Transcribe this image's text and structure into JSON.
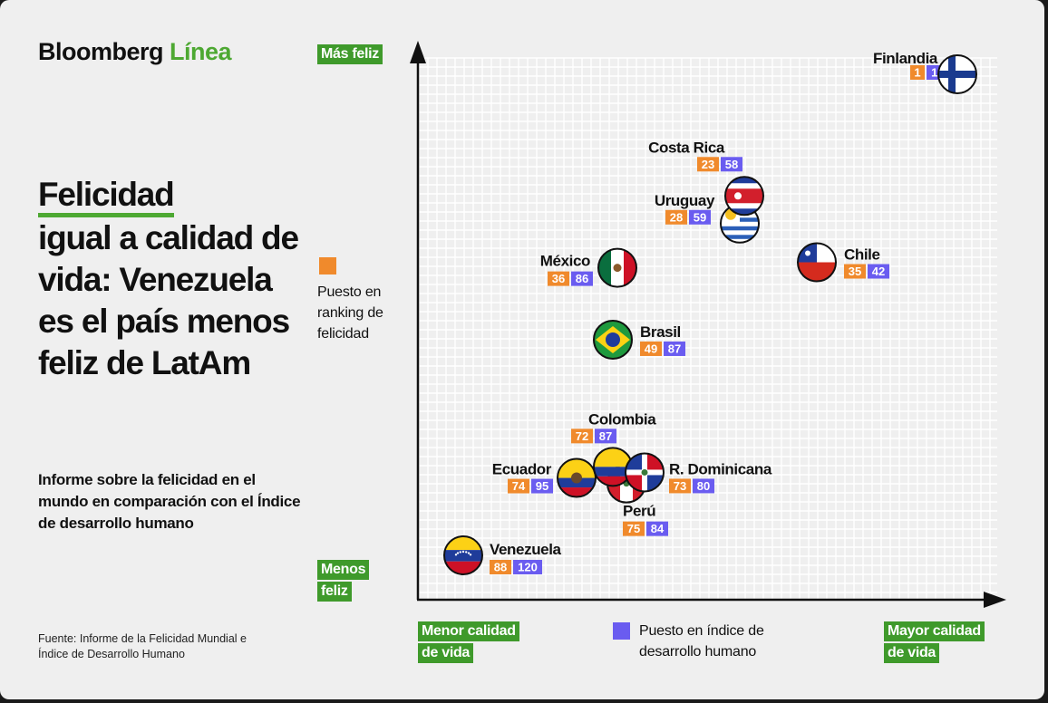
{
  "brand": {
    "name": "Bloomberg",
    "accent": "Línea"
  },
  "title": {
    "first": "Felicidad",
    "rest": "igual a calidad de vida: Venezuela es el país menos feliz de LatAm"
  },
  "subtitle": "Informe sobre la felicidad en el mundo en comparación con el Índice de desarrollo humano",
  "source": "Fuente: Informe de la Felicidad Mundial e Índice de Desarrollo Humano",
  "axis_labels": {
    "y_top": "Más feliz",
    "y_bottom_1": "Menos",
    "y_bottom_2": "feliz",
    "x_left_1": "Menor calidad",
    "x_left_2": "de vida",
    "x_right_1": "Mayor calidad",
    "x_right_2": "de vida"
  },
  "legend": {
    "happiness": {
      "line1": "Puesto en",
      "line2": "ranking de",
      "line3": "felicidad"
    },
    "hdi": {
      "line1": "Puesto en índice de",
      "line2": "desarrollo humano"
    }
  },
  "colors": {
    "happiness_rank": "#f08a2c",
    "hdi_rank": "#6a5cf0",
    "label_green": "#3f9a2b",
    "accent_green": "#4da832",
    "grid": "#ffffff",
    "background": "#efefef"
  },
  "chart_data": {
    "type": "scatter",
    "x_axis": "Puesto en índice de desarrollo humano",
    "y_axis": "Puesto en ranking de felicidad",
    "x_direction": "Menor calidad de vida → Mayor calidad de vida",
    "y_direction": "Menos feliz → Más feliz",
    "points": [
      {
        "country": "Finlandia",
        "happiness_rank": 1,
        "hdi_rank": 11,
        "flag": "finland-flag-icon"
      },
      {
        "country": "Costa Rica",
        "happiness_rank": 23,
        "hdi_rank": 58,
        "flag": "costa-rica-flag-icon"
      },
      {
        "country": "Uruguay",
        "happiness_rank": 28,
        "hdi_rank": 59,
        "flag": "uruguay-flag-icon"
      },
      {
        "country": "Chile",
        "happiness_rank": 35,
        "hdi_rank": 42,
        "flag": "chile-flag-icon"
      },
      {
        "country": "México",
        "happiness_rank": 36,
        "hdi_rank": 86,
        "flag": "mexico-flag-icon"
      },
      {
        "country": "Brasil",
        "happiness_rank": 49,
        "hdi_rank": 87,
        "flag": "brazil-flag-icon"
      },
      {
        "country": "Colombia",
        "happiness_rank": 72,
        "hdi_rank": 87,
        "flag": "colombia-flag-icon"
      },
      {
        "country": "R. Dominicana",
        "happiness_rank": 73,
        "hdi_rank": 80,
        "flag": "dominican-republic-flag-icon"
      },
      {
        "country": "Ecuador",
        "happiness_rank": 74,
        "hdi_rank": 95,
        "flag": "ecuador-flag-icon"
      },
      {
        "country": "Perú",
        "happiness_rank": 75,
        "hdi_rank": 84,
        "flag": "peru-flag-icon"
      },
      {
        "country": "Venezuela",
        "happiness_rank": 88,
        "hdi_rank": 120,
        "flag": "venezuela-flag-icon"
      }
    ]
  }
}
